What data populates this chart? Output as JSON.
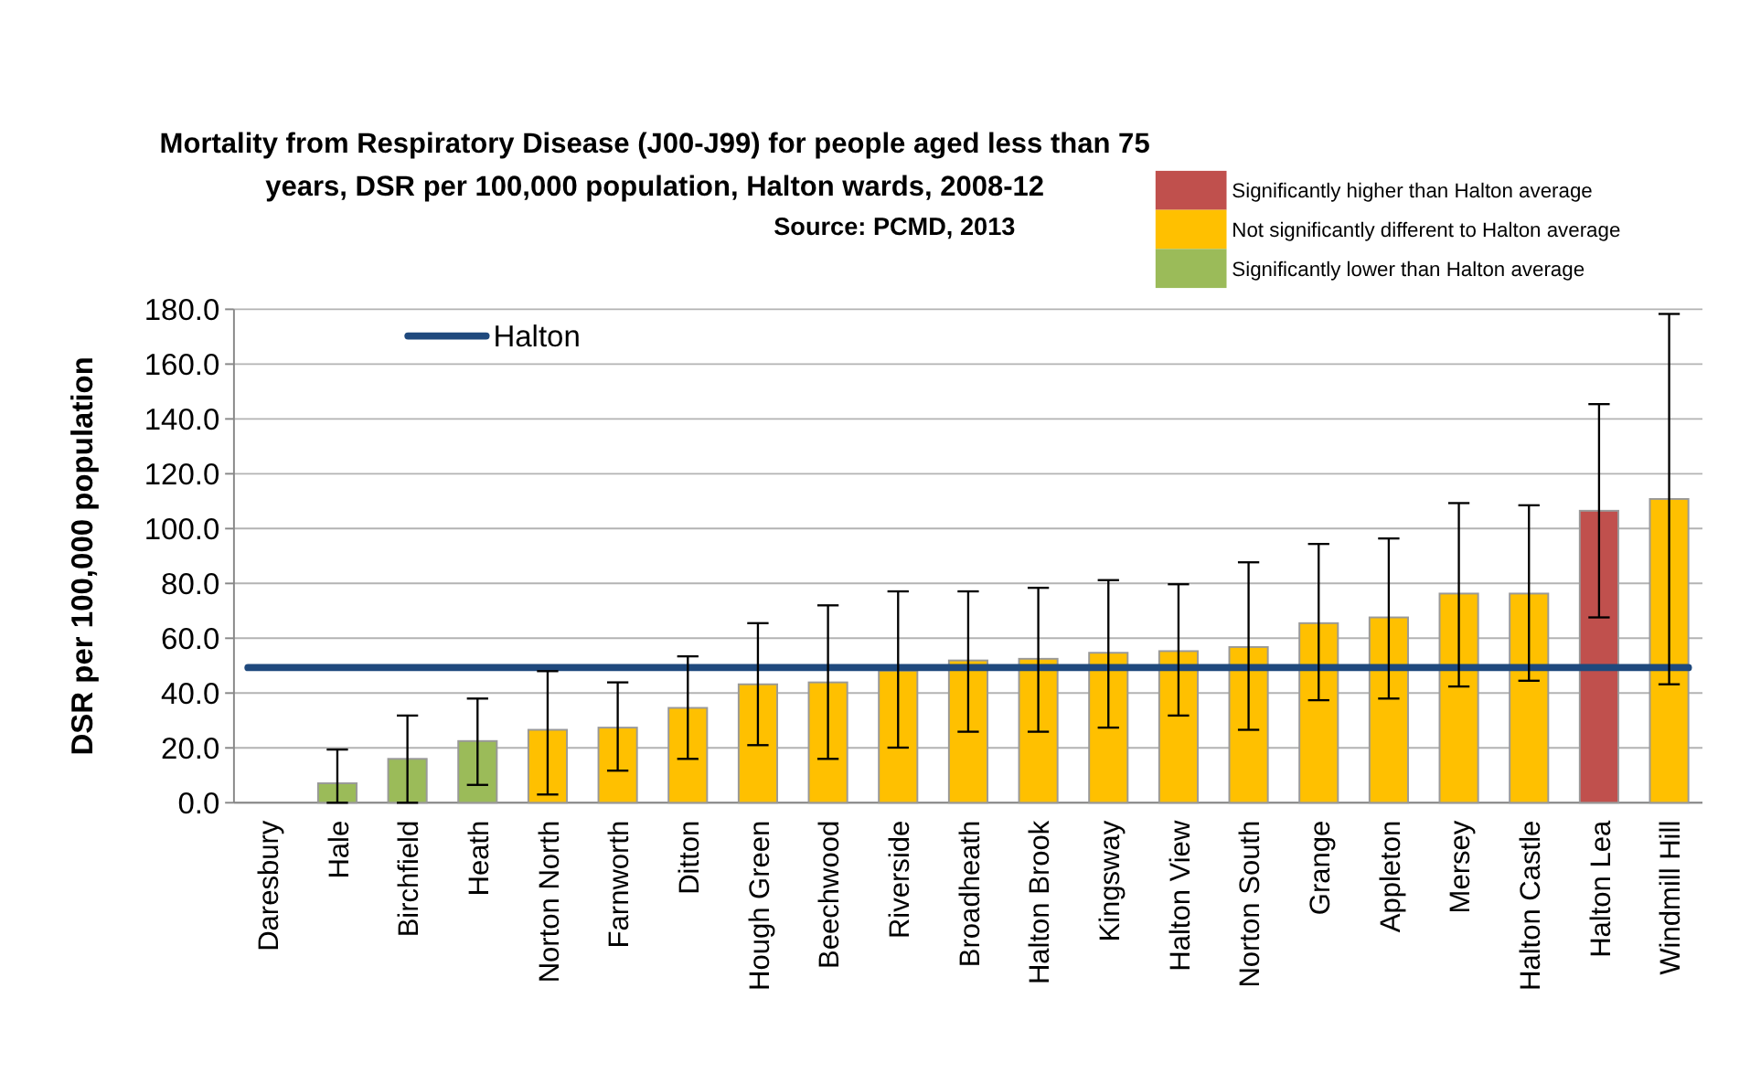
{
  "chart_data": {
    "type": "bar",
    "title": "Mortality from Respiratory Disease (J00-J99) for people aged less than 75 years, DSR per 100,000 population, Halton wards, 2008-12",
    "subtitle": "Source: PCMD, 2013",
    "ylabel": "DSR per 100,000 population",
    "categories": [
      "Daresbury",
      "Hale",
      "Birchfield",
      "Heath",
      "Norton North",
      "Farnworth",
      "Ditton",
      "Hough Green",
      "Beechwood",
      "Riverside",
      "Broadheath",
      "Halton Brook",
      "Kingsway",
      "Halton View",
      "Norton South",
      "Grange",
      "Appleton",
      "Mersey",
      "Halton Castle",
      "Halton Lea",
      "Windmill Hill"
    ],
    "stacked": true,
    "series": [
      {
        "name": "Significantly higher than Halton average",
        "color": "#c0504d",
        "values": [
          null,
          null,
          null,
          null,
          null,
          null,
          null,
          null,
          null,
          null,
          null,
          null,
          null,
          null,
          null,
          null,
          null,
          null,
          null,
          106.5,
          null
        ],
        "errors": [
          null,
          null,
          null,
          null,
          null,
          null,
          null,
          null,
          null,
          null,
          null,
          null,
          null,
          null,
          null,
          null,
          null,
          null,
          null,
          [
            67.6,
            145.4
          ],
          null
        ]
      },
      {
        "name": "Not significantly different to Halton average",
        "color": "#ffc000",
        "values": [
          null,
          null,
          null,
          null,
          26.6,
          27.4,
          34.6,
          43.2,
          43.9,
          48.2,
          51.9,
          52.5,
          54.7,
          55.3,
          56.8,
          65.5,
          67.6,
          76.3,
          76.3,
          null,
          110.8
        ],
        "errors": [
          null,
          null,
          null,
          null,
          [
            3.0,
            48.0
          ],
          [
            11.7,
            43.9
          ],
          [
            16.0,
            53.4
          ],
          [
            21.0,
            65.5
          ],
          [
            16.0,
            72.0
          ],
          [
            20.1,
            77.1
          ],
          [
            25.9,
            77.1
          ],
          [
            25.9,
            78.4
          ],
          [
            27.4,
            81.2
          ],
          [
            31.8,
            79.7
          ],
          [
            26.6,
            87.7
          ],
          [
            37.4,
            94.4
          ],
          [
            38.0,
            96.4
          ],
          [
            42.4,
            109.3
          ],
          [
            44.5,
            108.5
          ],
          null,
          [
            43.2,
            178.3
          ]
        ]
      },
      {
        "name": "Significantly lower than Halton average",
        "color": "#9bbb59",
        "values": [
          null,
          7.1,
          16.0,
          22.5,
          null,
          null,
          null,
          null,
          null,
          null,
          null,
          null,
          null,
          null,
          null,
          null,
          null,
          null,
          null,
          null,
          null
        ],
        "errors": [
          null,
          [
            0,
            19.4
          ],
          [
            0,
            31.8
          ],
          [
            6.5,
            38.0
          ],
          null,
          null,
          null,
          null,
          null,
          null,
          null,
          null,
          null,
          null,
          null,
          null,
          null,
          null,
          null,
          null,
          null
        ]
      }
    ],
    "ref_lines": [
      {
        "axis": "y",
        "value": 49.3,
        "label": "Halton",
        "color": "#1f497d"
      }
    ],
    "ylim": [
      0,
      180
    ],
    "yticks": [
      {
        "value": 0,
        "label": "0.0"
      },
      {
        "value": 20,
        "label": "20.0"
      },
      {
        "value": 40,
        "label": "40.0"
      },
      {
        "value": 60,
        "label": "60.0"
      },
      {
        "value": 80,
        "label": "80.0"
      },
      {
        "value": 100,
        "label": "100.0"
      },
      {
        "value": 120,
        "label": "120.0"
      },
      {
        "value": 140,
        "label": "140.0"
      },
      {
        "value": 160,
        "label": "160.0"
      },
      {
        "value": 180,
        "label": "180.0"
      }
    ],
    "grid": "y",
    "legend": "top right"
  }
}
